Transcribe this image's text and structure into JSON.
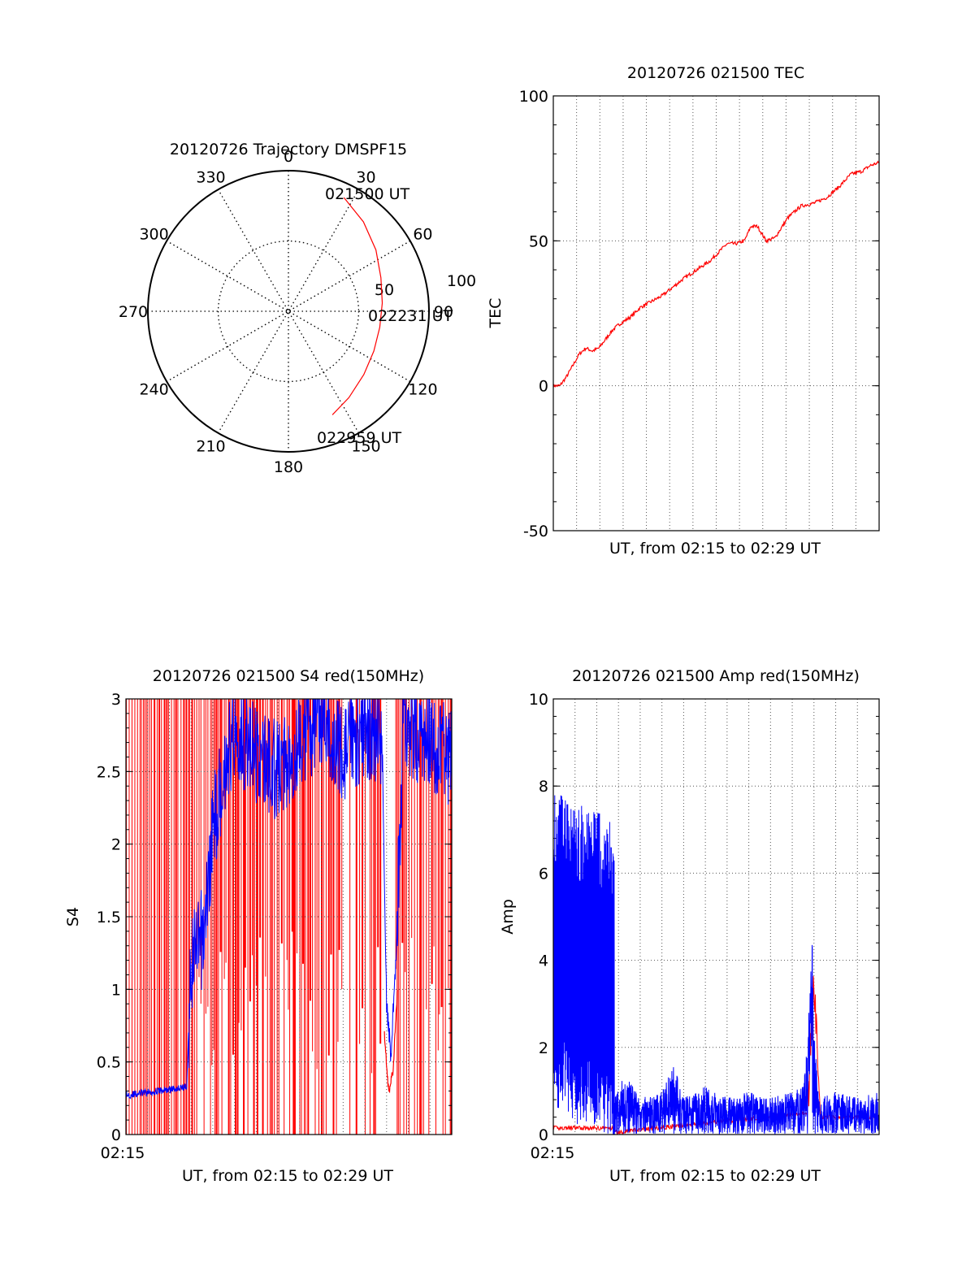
{
  "colors": {
    "red": "#ff0000",
    "blue": "#0000ff",
    "axis": "#000000",
    "grid": "#555555"
  },
  "chart_data": [
    {
      "id": "trajectory",
      "type": "polar",
      "title": "20120726 Trajectory DMSPF15",
      "angle_labels": [
        "0",
        "30",
        "60",
        "90",
        "120",
        "150",
        "180",
        "210",
        "240",
        "270",
        "300",
        "330"
      ],
      "radius_labels": [
        "50",
        "100"
      ],
      "rlim": [
        0,
        100
      ],
      "grid": true,
      "annotations": {
        "start": "021500 UT",
        "mid": "022231 UT",
        "end": "022959 UT"
      },
      "track": [
        [
          26,
          90
        ],
        [
          40,
          83
        ],
        [
          55,
          76
        ],
        [
          70,
          70
        ],
        [
          85,
          67
        ],
        [
          100,
          66
        ],
        [
          115,
          67
        ],
        [
          130,
          70
        ],
        [
          145,
          75
        ],
        [
          157,
          80
        ]
      ]
    },
    {
      "id": "tec",
      "type": "line",
      "title": "20120726 021500 TEC",
      "xlabel": "UT, from 02:15 to 02:29 UT",
      "ylabel": "TEC",
      "ylim": [
        -50,
        100
      ],
      "yticks": [
        "-50",
        "0",
        "50",
        "100"
      ],
      "xlim_min": [
        0,
        15
      ],
      "grid": true,
      "series": [
        {
          "color": "red",
          "x": [
            0,
            0.3,
            0.6,
            0.9,
            1.2,
            1.5,
            1.8,
            2.1,
            2.4,
            2.7,
            3.0,
            3.6,
            4.0,
            4.5,
            5.0,
            5.5,
            6.0,
            6.6,
            7.2,
            7.6,
            8.0,
            8.4,
            8.8,
            9.1,
            9.4,
            9.8,
            10.2,
            10.8,
            11.4,
            12.0,
            12.6,
            13.2,
            13.7,
            14.2,
            14.6,
            15.0
          ],
          "y": [
            0,
            0,
            3,
            7,
            11,
            13,
            12,
            13,
            16,
            19,
            21,
            24,
            27,
            29,
            31,
            34,
            37,
            40,
            43,
            46,
            49,
            49,
            50,
            55,
            55,
            50,
            51,
            58,
            62,
            63,
            65,
            69,
            73,
            74,
            76,
            77
          ]
        }
      ]
    },
    {
      "id": "s4",
      "type": "line",
      "title": "20120726 021500 S4 red(150MHz)",
      "xlabel": "UT, from 02:15 to 02:29 UT",
      "ylabel": "S4",
      "ylim": [
        0,
        3
      ],
      "yticks": [
        "0",
        "0.5",
        "1",
        "1.5",
        "2",
        "2.5",
        "3"
      ],
      "xtick_label": "02:15",
      "xlim_min": [
        0,
        15
      ],
      "grid": true,
      "series": [
        {
          "color": "blue",
          "x": [
            0,
            1,
            2,
            2.8,
            3.0,
            3.3,
            3.6,
            4.0,
            4.5,
            5,
            6,
            7,
            8,
            9,
            10,
            11,
            11.8,
            12.0,
            12.2,
            12.4,
            12.8,
            13,
            14,
            15
          ],
          "y": [
            0.27,
            0.29,
            0.31,
            0.33,
            1.2,
            1.25,
            1.4,
            2.1,
            2.5,
            2.8,
            2.6,
            2.5,
            2.7,
            2.9,
            2.6,
            2.8,
            2.7,
            0.9,
            0.55,
            1.1,
            2.9,
            2.8,
            2.7,
            2.6
          ]
        },
        {
          "color": "red",
          "x": [
            11.9,
            12.1,
            12.3,
            12.5
          ],
          "y": [
            0.7,
            0.28,
            0.45,
            1.0
          ]
        }
      ]
    },
    {
      "id": "amp",
      "type": "line",
      "title": "20120726 021500 Amp red(150MHz)",
      "xlabel": "UT, from 02:15 to 02:29 UT",
      "ylabel": "Amp",
      "ylim": [
        0,
        10
      ],
      "yticks": [
        "0",
        "2",
        "4",
        "6",
        "8",
        "10"
      ],
      "xtick_label": "02:15",
      "xlim_min": [
        0,
        15
      ],
      "grid": true,
      "series": [
        {
          "color": "blue",
          "x": [
            0,
            0.5,
            1,
            1.5,
            2,
            2.5,
            2.8,
            2.85,
            3.5,
            4,
            5,
            5.5,
            6,
            6.5,
            7,
            8,
            9,
            10,
            11,
            11.5,
            11.7,
            11.9,
            12,
            12.3,
            13,
            14,
            15
          ],
          "y": [
            4.5,
            4.6,
            4.2,
            4.3,
            4.1,
            4.0,
            3.9,
            0.9,
            0.9,
            0.6,
            0.7,
            1.2,
            0.6,
            0.7,
            0.8,
            0.6,
            0.7,
            0.6,
            0.7,
            0.8,
            1.5,
            3.5,
            1.8,
            0.6,
            0.7,
            0.6,
            0.7
          ]
        },
        {
          "color": "red",
          "x": [
            0,
            1,
            2,
            2.8,
            2.85,
            11.7,
            11.9,
            12.0,
            12.3,
            15
          ],
          "y": [
            0.15,
            0.15,
            0.15,
            0.15,
            0.05,
            0.5,
            2.5,
            3.4,
            0.4,
            0.4
          ]
        }
      ]
    }
  ]
}
